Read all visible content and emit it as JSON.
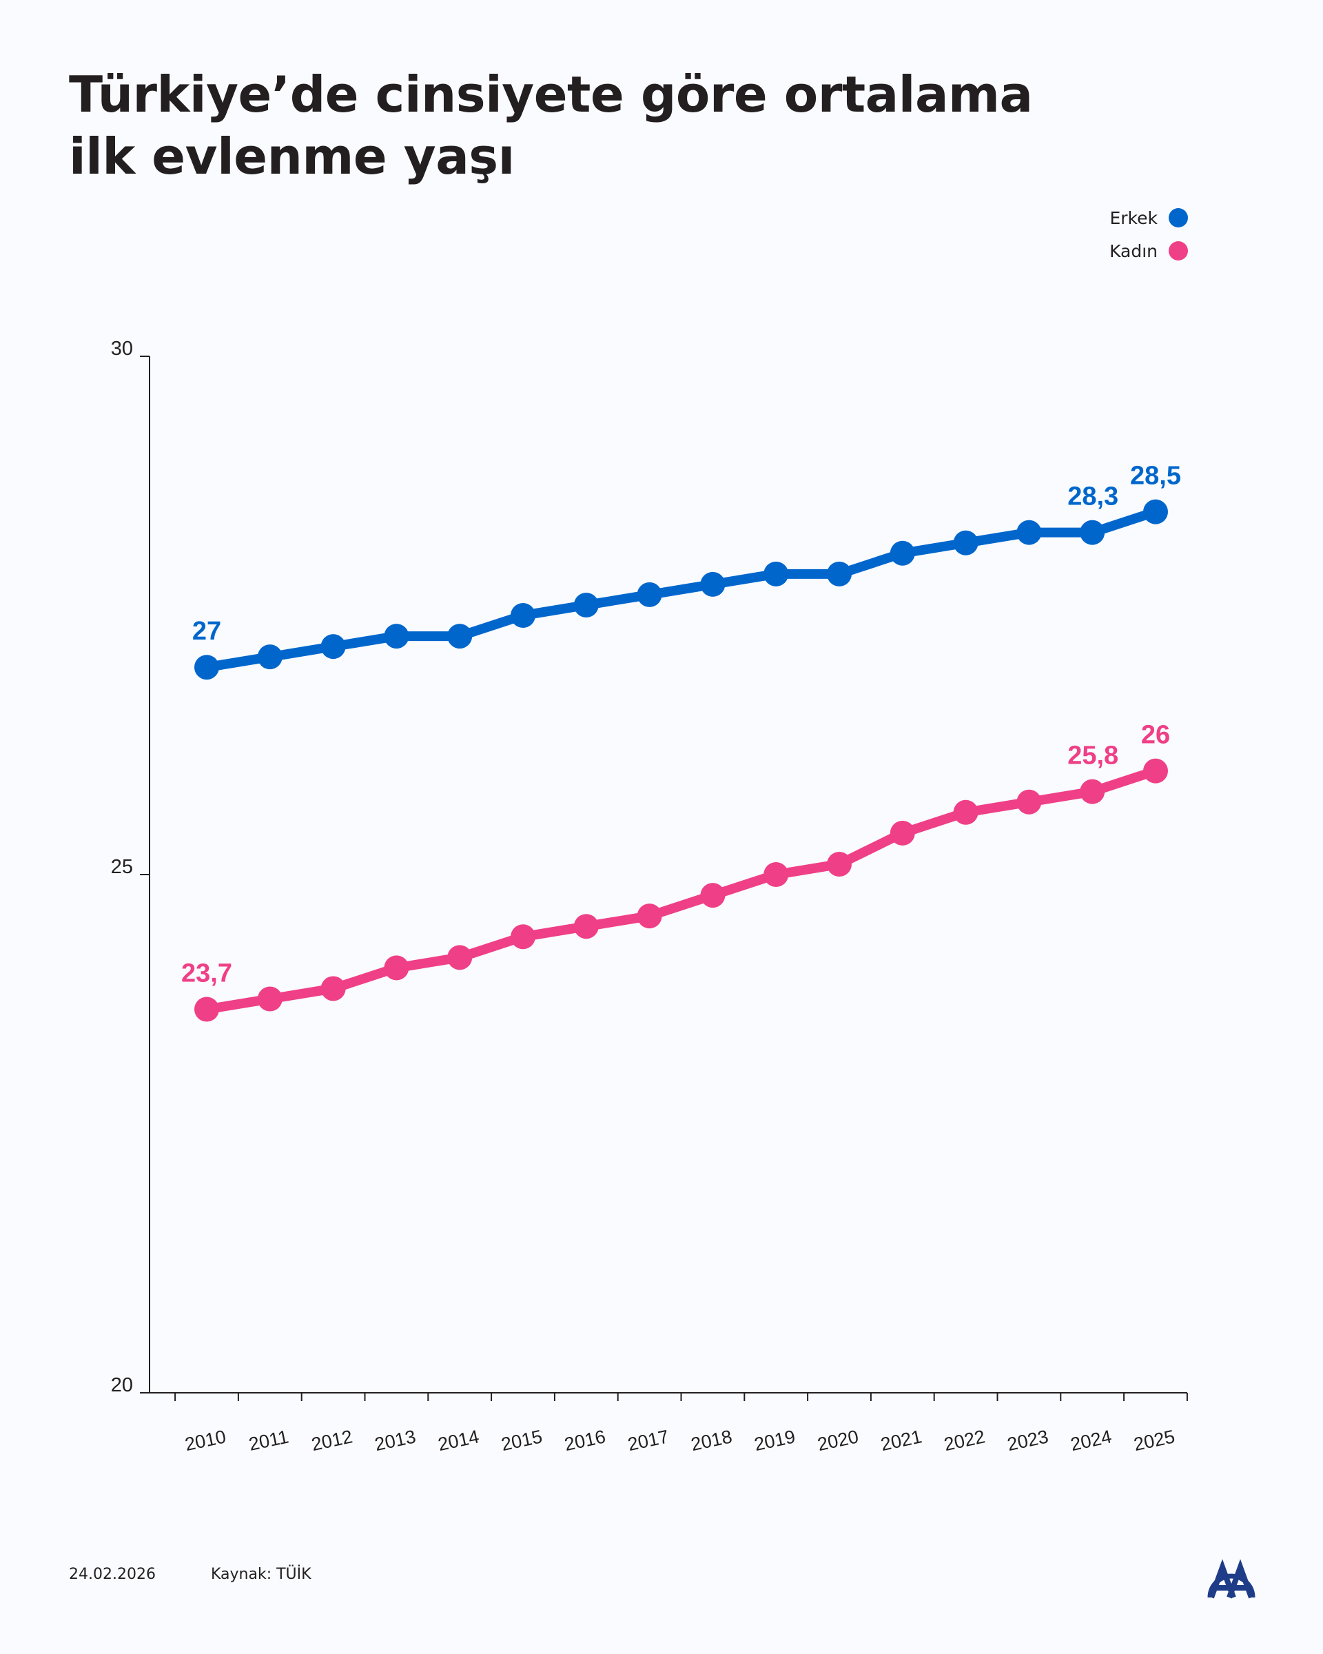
{
  "title": {
    "line1": "Türkiye’de cinsiyete göre ortalama",
    "line2": "ilk evlenme yaşı"
  },
  "footer": {
    "date": "24.02.2026",
    "source": "Kaynak: TÜİK",
    "logo_text": "AA"
  },
  "colors": {
    "erkek": "#0066cc",
    "kadin": "#ef3f87",
    "axis": "#231f20",
    "background": "#f9fbfe"
  },
  "chart_data": {
    "type": "line",
    "title": "Türkiye’de cinsiyete göre ortalama ilk evlenme yaşı",
    "xlabel": "",
    "ylabel": "",
    "ylim": [
      20,
      30
    ],
    "yticks": [
      "20",
      "25",
      "30"
    ],
    "grid": false,
    "legend": "top-right",
    "x": [
      "2010",
      "2011",
      "2012",
      "2013",
      "2014",
      "2015",
      "2016",
      "2017",
      "2018",
      "2019",
      "2020",
      "2021",
      "2022",
      "2023",
      "2024",
      "2025"
    ],
    "series": [
      {
        "name": "Erkek",
        "color": "#0066cc",
        "values": [
          27,
          27.1,
          27.2,
          27.3,
          27.3,
          27.5,
          27.6,
          27.7,
          27.8,
          27.9,
          27.9,
          28.1,
          28.2,
          28.3,
          28.3,
          28.5
        ],
        "labels": {
          "2010": "27",
          "2024": "28,3",
          "2025": "28,5"
        }
      },
      {
        "name": "Kadın",
        "color": "#ef3f87",
        "values": [
          23.7,
          23.8,
          23.9,
          24.1,
          24.2,
          24.4,
          24.5,
          24.6,
          24.8,
          25.0,
          25.1,
          25.4,
          25.6,
          25.7,
          25.8,
          26.0
        ],
        "labels": {
          "2010": "23,7",
          "2024": "25,8",
          "2025": "26"
        }
      }
    ]
  }
}
